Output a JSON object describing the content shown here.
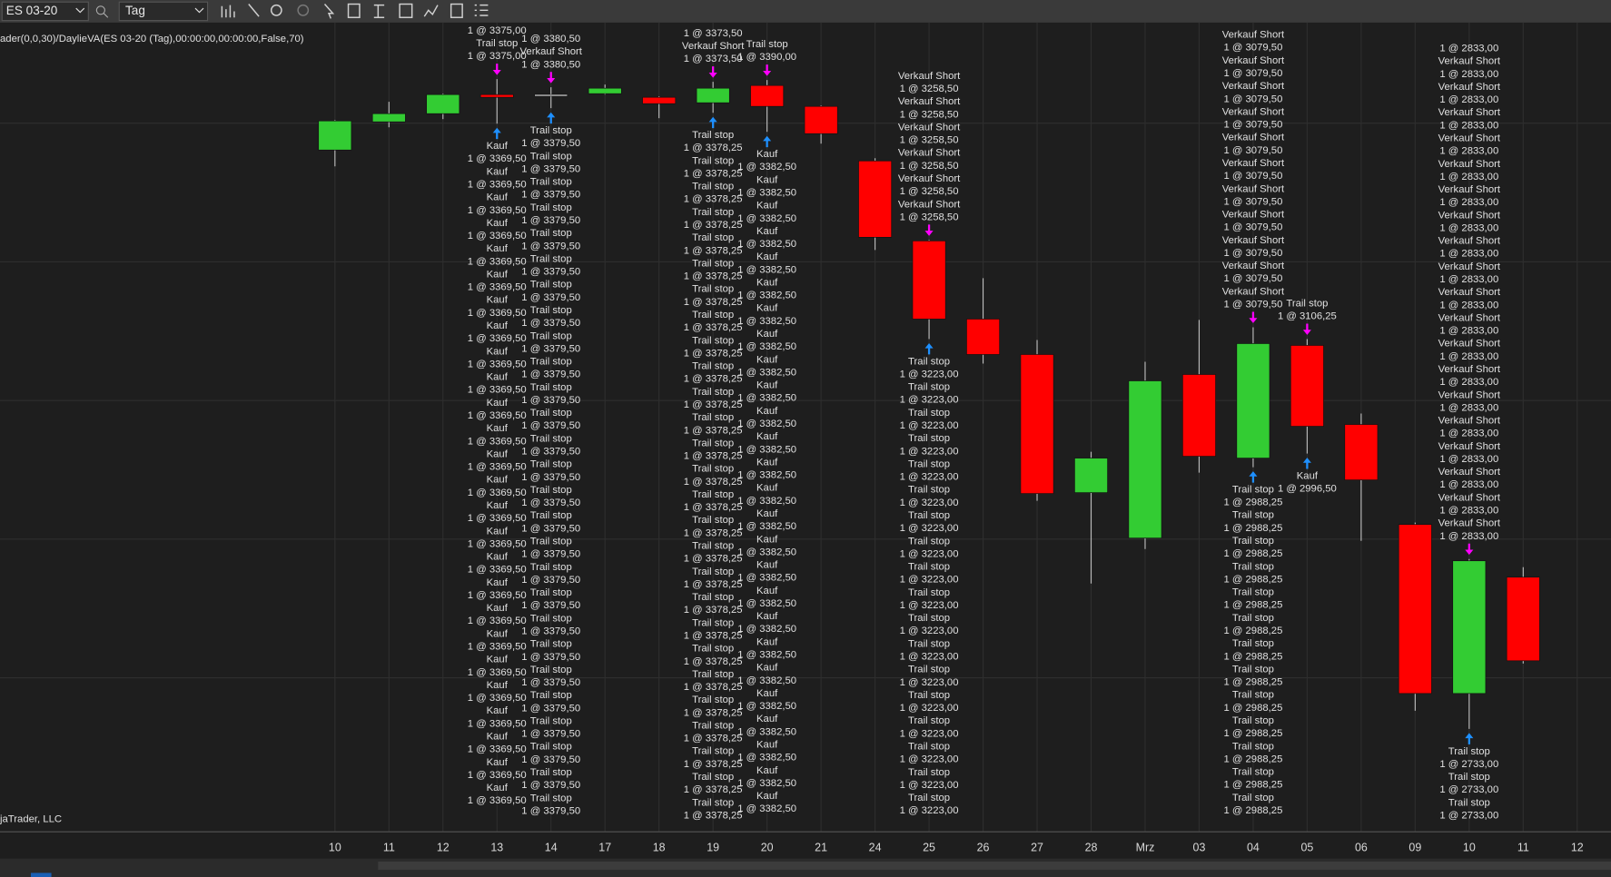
{
  "toolbar": {
    "instrument": "ES 03-20",
    "interval": "Tag"
  },
  "chart_data": {
    "type": "candlestick",
    "title": "ader(0,0,30)/DaylieVA(ES 03-20 (Tag),00:00:00,00:00:00,False,70)",
    "footer": "jaTrader, LLC",
    "categories": [
      "10",
      "11",
      "12",
      "13",
      "14",
      "17",
      "18",
      "19",
      "20",
      "21",
      "24",
      "25",
      "26",
      "27",
      "28",
      "Mrz",
      "03",
      "04",
      "05",
      "06",
      "09",
      "10",
      "11",
      "12"
    ],
    "open": [
      3315,
      3346,
      3355,
      3376,
      3376,
      3377,
      3373,
      3367,
      3386,
      3363,
      3303,
      3215,
      3129,
      3090,
      2938,
      2888,
      3068,
      2976,
      3100,
      3013,
      2903,
      2717,
      2845,
      null
    ],
    "high": [
      3348,
      3368,
      3377,
      3393,
      3384,
      3387,
      3374,
      3390,
      3392,
      3364,
      3306,
      3216,
      3174,
      3106,
      2983,
      3082,
      3128,
      3120,
      3107,
      3025,
      2905,
      2865,
      2856,
      null
    ],
    "low": [
      3297,
      3340,
      3349,
      3344,
      3361,
      3376,
      3350,
      3356,
      3335,
      3322,
      3205,
      3107,
      3080,
      2929,
      2838,
      2876,
      2960,
      2966,
      2981,
      2885,
      2698,
      2678,
      2750,
      null
    ],
    "close": [
      3347,
      3355,
      3376,
      3373,
      3376,
      3383,
      3366,
      3383,
      3363,
      3333,
      3219,
      3129,
      3090,
      2937,
      2976,
      3061,
      2978,
      3102,
      3011,
      2952,
      2717,
      2863,
      2753,
      null
    ],
    "ylim": [
      2564.8,
      3455.2
    ],
    "up_color": "#33cc33",
    "down_color": "#ff0000",
    "grid": true,
    "above": [
      null,
      null,
      null,
      [
        "1 @ 3375,00",
        "Trail stop",
        "1 @ 3375,00"
      ],
      [
        "1 @ 3380,50",
        "Verkauf Short",
        "1 @ 3380,50"
      ],
      null,
      null,
      [
        "1 @ 3373,50",
        "Verkauf Short",
        "1 @ 3373,50"
      ],
      [
        "Trail stop",
        "1 @ 3390,00"
      ],
      null,
      null,
      [
        "Verkauf Short",
        "1 @ 3258,50",
        "Verkauf Short",
        "1 @ 3258,50",
        "Verkauf Short",
        "1 @ 3258,50",
        "Verkauf Short",
        "1 @ 3258,50",
        "Verkauf Short",
        "1 @ 3258,50",
        "Verkauf Short",
        "1 @ 3258,50"
      ],
      null,
      null,
      null,
      null,
      null,
      [
        "Verkauf Short",
        "1 @ 3079,50",
        "Verkauf Short",
        "1 @ 3079,50",
        "Verkauf Short",
        "1 @ 3079,50",
        "Verkauf Short",
        "1 @ 3079,50",
        "Verkauf Short",
        "1 @ 3079,50",
        "Verkauf Short",
        "1 @ 3079,50",
        "Verkauf Short",
        "1 @ 3079,50",
        "Verkauf Short",
        "1 @ 3079,50",
        "Verkauf Short",
        "1 @ 3079,50",
        "Verkauf Short",
        "1 @ 3079,50",
        "Verkauf Short",
        "1 @ 3079,50"
      ],
      [
        "Trail stop",
        "1 @ 3106,25"
      ],
      null,
      null,
      [
        "1 @ 2833,00",
        "Verkauf Short",
        "1 @ 2833,00",
        "Verkauf Short",
        "1 @ 2833,00",
        "Verkauf Short",
        "1 @ 2833,00",
        "Verkauf Short",
        "1 @ 2833,00",
        "Verkauf Short",
        "1 @ 2833,00",
        "Verkauf Short",
        "1 @ 2833,00",
        "Verkauf Short",
        "1 @ 2833,00",
        "Verkauf Short",
        "1 @ 2833,00",
        "Verkauf Short",
        "1 @ 2833,00",
        "Verkauf Short",
        "1 @ 2833,00",
        "Verkauf Short",
        "1 @ 2833,00",
        "Verkauf Short",
        "1 @ 2833,00",
        "Verkauf Short",
        "1 @ 2833,00",
        "Verkauf Short",
        "1 @ 2833,00",
        "Verkauf Short",
        "1 @ 2833,00",
        "Verkauf Short",
        "1 @ 2833,00",
        "Verkauf Short",
        "1 @ 2833,00",
        "Verkauf Short",
        "1 @ 2833,00",
        "Verkauf Short",
        "1 @ 2833,00"
      ],
      null,
      null
    ],
    "below": [
      null,
      null,
      null,
      [
        "Kauf",
        "1 @ 3369,50",
        "Kauf",
        "1 @ 3369,50",
        "Kauf",
        "1 @ 3369,50",
        "Kauf",
        "1 @ 3369,50",
        "Kauf",
        "1 @ 3369,50",
        "Kauf",
        "1 @ 3369,50",
        "Kauf",
        "1 @ 3369,50",
        "Kauf",
        "1 @ 3369,50",
        "Kauf",
        "1 @ 3369,50",
        "Kauf",
        "1 @ 3369,50",
        "Kauf",
        "1 @ 3369,50",
        "Kauf",
        "1 @ 3369,50",
        "Kauf",
        "1 @ 3369,50",
        "Kauf",
        "1 @ 3369,50",
        "Kauf",
        "1 @ 3369,50",
        "Kauf",
        "1 @ 3369,50",
        "Kauf",
        "1 @ 3369,50",
        "Kauf",
        "1 @ 3369,50",
        "Kauf",
        "1 @ 3369,50",
        "Kauf",
        "1 @ 3369,50",
        "Kauf",
        "1 @ 3369,50",
        "Kauf",
        "1 @ 3369,50",
        "Kauf",
        "1 @ 3369,50",
        "Kauf",
        "1 @ 3369,50",
        "Kauf",
        "1 @ 3369,50",
        "Kauf",
        "1 @ 3369,50"
      ],
      [
        "Trail stop",
        "1 @ 3379,50",
        "Trail stop",
        "1 @ 3379,50",
        "Trail stop",
        "1 @ 3379,50",
        "Trail stop",
        "1 @ 3379,50",
        "Trail stop",
        "1 @ 3379,50",
        "Trail stop",
        "1 @ 3379,50",
        "Trail stop",
        "1 @ 3379,50",
        "Trail stop",
        "1 @ 3379,50",
        "Trail stop",
        "1 @ 3379,50",
        "Trail stop",
        "1 @ 3379,50",
        "Trail stop",
        "1 @ 3379,50",
        "Trail stop",
        "1 @ 3379,50",
        "Trail stop",
        "1 @ 3379,50",
        "Trail stop",
        "1 @ 3379,50",
        "Trail stop",
        "1 @ 3379,50",
        "Trail stop",
        "1 @ 3379,50",
        "Trail stop",
        "1 @ 3379,50",
        "Trail stop",
        "1 @ 3379,50",
        "Trail stop",
        "1 @ 3379,50",
        "Trail stop",
        "1 @ 3379,50",
        "Trail stop",
        "1 @ 3379,50",
        "Trail stop",
        "1 @ 3379,50",
        "Trail stop",
        "1 @ 3379,50",
        "Trail stop",
        "1 @ 3379,50",
        "Trail stop",
        "1 @ 3379,50",
        "Trail stop",
        "1 @ 3379,50",
        "Trail stop",
        "1 @ 3379,50"
      ],
      null,
      null,
      [
        "Trail stop",
        "1 @ 3378,25",
        "Trail stop",
        "1 @ 3378,25",
        "Trail stop",
        "1 @ 3378,25",
        "Trail stop",
        "1 @ 3378,25",
        "Trail stop",
        "1 @ 3378,25",
        "Trail stop",
        "1 @ 3378,25",
        "Trail stop",
        "1 @ 3378,25",
        "Trail stop",
        "1 @ 3378,25",
        "Trail stop",
        "1 @ 3378,25",
        "Trail stop",
        "1 @ 3378,25",
        "Trail stop",
        "1 @ 3378,25",
        "Trail stop",
        "1 @ 3378,25",
        "Trail stop",
        "1 @ 3378,25",
        "Trail stop",
        "1 @ 3378,25",
        "Trail stop",
        "1 @ 3378,25",
        "Trail stop",
        "1 @ 3378,25",
        "Trail stop",
        "1 @ 3378,25",
        "Trail stop",
        "1 @ 3378,25",
        "Trail stop",
        "1 @ 3378,25",
        "Trail stop",
        "1 @ 3378,25",
        "Trail stop",
        "1 @ 3378,25",
        "Trail stop",
        "1 @ 3378,25",
        "Trail stop",
        "1 @ 3378,25",
        "Trail stop",
        "1 @ 3378,25",
        "Trail stop",
        "1 @ 3378,25",
        "Trail stop",
        "1 @ 3378,25",
        "Trail stop",
        "1 @ 3378,25"
      ],
      [
        "Kauf",
        "1 @ 3382,50",
        "Kauf",
        "1 @ 3382,50",
        "Kauf",
        "1 @ 3382,50",
        "Kauf",
        "1 @ 3382,50",
        "Kauf",
        "1 @ 3382,50",
        "Kauf",
        "1 @ 3382,50",
        "Kauf",
        "1 @ 3382,50",
        "Kauf",
        "1 @ 3382,50",
        "Kauf",
        "1 @ 3382,50",
        "Kauf",
        "1 @ 3382,50",
        "Kauf",
        "1 @ 3382,50",
        "Kauf",
        "1 @ 3382,50",
        "Kauf",
        "1 @ 3382,50",
        "Kauf",
        "1 @ 3382,50",
        "Kauf",
        "1 @ 3382,50",
        "Kauf",
        "1 @ 3382,50",
        "Kauf",
        "1 @ 3382,50",
        "Kauf",
        "1 @ 3382,50",
        "Kauf",
        "1 @ 3382,50",
        "Kauf",
        "1 @ 3382,50",
        "Kauf",
        "1 @ 3382,50",
        "Kauf",
        "1 @ 3382,50",
        "Kauf",
        "1 @ 3382,50",
        "Kauf",
        "1 @ 3382,50",
        "Kauf",
        "1 @ 3382,50",
        "Kauf",
        "1 @ 3382,50"
      ],
      null,
      null,
      [
        "Trail stop",
        "1 @ 3223,00",
        "Trail stop",
        "1 @ 3223,00",
        "Trail stop",
        "1 @ 3223,00",
        "Trail stop",
        "1 @ 3223,00",
        "Trail stop",
        "1 @ 3223,00",
        "Trail stop",
        "1 @ 3223,00",
        "Trail stop",
        "1 @ 3223,00",
        "Trail stop",
        "1 @ 3223,00",
        "Trail stop",
        "1 @ 3223,00",
        "Trail stop",
        "1 @ 3223,00",
        "Trail stop",
        "1 @ 3223,00",
        "Trail stop",
        "1 @ 3223,00",
        "Trail stop",
        "1 @ 3223,00",
        "Trail stop",
        "1 @ 3223,00",
        "Trail stop",
        "1 @ 3223,00",
        "Trail stop",
        "1 @ 3223,00",
        "Trail stop",
        "1 @ 3223,00",
        "Trail stop",
        "1 @ 3223,00"
      ],
      null,
      null,
      null,
      null,
      null,
      [
        "Trail stop",
        "1 @ 2988,25",
        "Trail stop",
        "1 @ 2988,25",
        "Trail stop",
        "1 @ 2988,25",
        "Trail stop",
        "1 @ 2988,25",
        "Trail stop",
        "1 @ 2988,25",
        "Trail stop",
        "1 @ 2988,25",
        "Trail stop",
        "1 @ 2988,25",
        "Trail stop",
        "1 @ 2988,25",
        "Trail stop",
        "1 @ 2988,25",
        "Trail stop",
        "1 @ 2988,25",
        "Trail stop",
        "1 @ 2988,25",
        "Trail stop",
        "1 @ 2988,25",
        "Trail stop",
        "1 @ 2988,25"
      ],
      [
        "Kauf",
        "1 @ 2996,50"
      ],
      null,
      null,
      [
        "Trail stop",
        "1 @ 2733,00",
        "Trail stop",
        "1 @ 2733,00",
        "Trail stop",
        "1 @ 2733,00"
      ],
      null,
      null
    ]
  }
}
